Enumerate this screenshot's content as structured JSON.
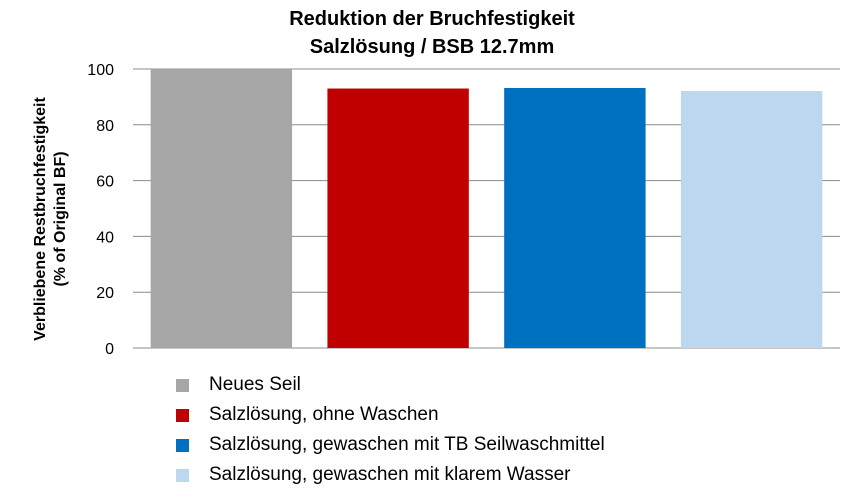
{
  "chart_data": {
    "type": "bar",
    "title": "Reduktion der Bruchfestigkeit",
    "subtitle": "Salzlösung / BSB 12.7mm",
    "ylabel_line1": "Verbliebene Restbruchfestigkeit",
    "ylabel_line2": "(% of Original BF)",
    "ylim": [
      0,
      100
    ],
    "yticks": [
      "0",
      "20",
      "40",
      "60",
      "80",
      "100"
    ],
    "grid": true,
    "legend_position": "bottom-left",
    "series": [
      {
        "name": "Neues Seil",
        "value": 100,
        "color": "#a6a6a6"
      },
      {
        "name": "Salzlösung, ohne Waschen",
        "value": 93,
        "color": "#c00000"
      },
      {
        "name": "Salzlösung, gewaschen mit TB Seilwaschmittel",
        "value": 93.2,
        "color": "#0070c0"
      },
      {
        "name": "Salzlösung, gewaschen mit klarem Wasser",
        "value": 92.1,
        "color": "#bdd7ee"
      }
    ]
  }
}
